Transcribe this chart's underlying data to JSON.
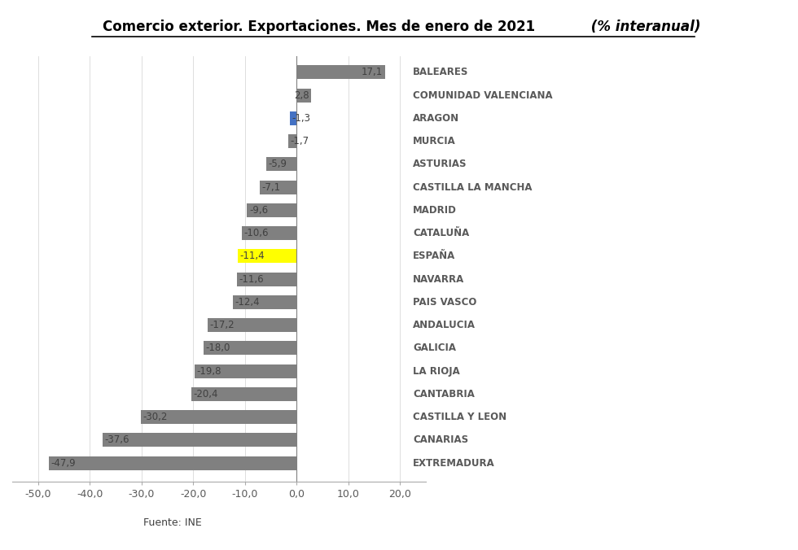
{
  "title_main": "Comercio exterior. Exportaciones. Mes de enero de 2021",
  "title_italic": " (% interanual)",
  "categories": [
    "BALEARES",
    "COMUNIDAD VALENCIANA",
    "ARAGON",
    "MURCIA",
    "ASTURIAS",
    "CASTILLA LA MANCHA",
    "MADRID",
    "CATALUÑA",
    "ESPAÑA",
    "NAVARRA",
    "PAIS VASCO",
    "ANDALUCIA",
    "GALICIA",
    "LA RIOJA",
    "CANTABRIA",
    "CASTILLA Y LEON",
    "CANARIAS",
    "EXTREMADURA"
  ],
  "values": [
    17.1,
    2.8,
    -1.3,
    -1.7,
    -5.9,
    -7.1,
    -9.6,
    -10.6,
    -11.4,
    -11.6,
    -12.4,
    -17.2,
    -18.0,
    -19.8,
    -20.4,
    -30.2,
    -37.6,
    -47.9
  ],
  "bar_colors": [
    "#808080",
    "#808080",
    "#4472C4",
    "#808080",
    "#808080",
    "#808080",
    "#808080",
    "#808080",
    "#FFFF00",
    "#808080",
    "#808080",
    "#808080",
    "#808080",
    "#808080",
    "#808080",
    "#808080",
    "#808080",
    "#808080"
  ],
  "xlim": [
    -55,
    25
  ],
  "xticks": [
    -50,
    -40,
    -30,
    -20,
    -10,
    0,
    10,
    20
  ],
  "xtick_labels": [
    "-50,0",
    "-40,0",
    "-30,0",
    "-20,0",
    "-10,0",
    "0,0",
    "10,0",
    "20,0"
  ],
  "footnote": "Fuente: INE",
  "bg_color": "#FFFFFF",
  "title_color": "#000000",
  "label_fontsize": 8.5,
  "category_fontsize": 8.5,
  "xtick_fontsize": 9,
  "bar_height": 0.6
}
